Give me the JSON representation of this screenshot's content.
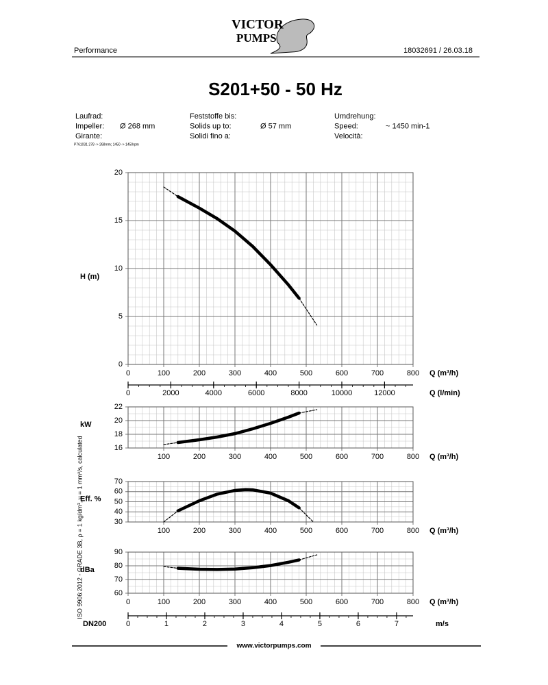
{
  "header": {
    "logo": [
      "VICTOR",
      "PUMPS"
    ],
    "left": "Performance",
    "right": "18032691 /  26.03.18"
  },
  "title": "S201+50 - 50 Hz",
  "specs": [
    {
      "labels": [
        "Laufrad:",
        "Impeller:",
        "Girante:"
      ],
      "value": "Ø 268 mm"
    },
    {
      "labels": [
        "Feststoffe bis:",
        "Solids up to:",
        "Solidi fino a:"
      ],
      "value": "Ø 57 mm"
    },
    {
      "labels": [
        "Umdrehung:",
        "Speed:",
        "Velocità:"
      ],
      "value": "~ 1450 min-1"
    }
  ],
  "note": "P761031 278 -> 268mm; 1450 -> 1450rpm",
  "side_note": "ISO 9906:2012 - GRADE 3B, ρ = 1 kg/dm³, ν = 1 mm²/s, calculated",
  "chart_data": [
    {
      "type": "line",
      "ylabel": "H (m)",
      "xlabel": "Q (m³/h)",
      "xlim": [
        0,
        800
      ],
      "xticks": [
        0,
        100,
        200,
        300,
        400,
        500,
        600,
        700,
        800
      ],
      "ylim": [
        0,
        20
      ],
      "yticks": [
        0,
        5,
        10,
        15,
        20
      ],
      "grid": true,
      "minor": [
        5,
        5
      ],
      "x": [
        100,
        140,
        200,
        250,
        300,
        350,
        400,
        450,
        480,
        530
      ],
      "series": [
        {
          "color": "#000000",
          "style": "solid",
          "values": [
            null,
            17.5,
            16.3,
            15.2,
            13.9,
            12.3,
            10.4,
            8.3,
            6.9,
            null
          ]
        },
        {
          "color": "#000000",
          "style": "dashed",
          "values": [
            18.5,
            17.5,
            null,
            null,
            null,
            null,
            null,
            null,
            6.9,
            4.1
          ]
        }
      ]
    },
    {
      "type": "axis",
      "xlabel": "Q (l/min)",
      "xlim": [
        0,
        13333
      ],
      "xticks": [
        0,
        2000,
        4000,
        6000,
        8000,
        10000,
        12000
      ]
    },
    {
      "type": "line",
      "ylabel": "kW",
      "xlabel": "Q (m³/h)",
      "xlim": [
        0,
        800
      ],
      "xticks": [
        100,
        200,
        300,
        400,
        500,
        600,
        700,
        800
      ],
      "ylim": [
        16,
        22
      ],
      "yticks": [
        16,
        18,
        20,
        22
      ],
      "grid": true,
      "minor": [
        5,
        2
      ],
      "x": [
        100,
        140,
        200,
        250,
        300,
        350,
        400,
        450,
        480,
        530
      ],
      "series": [
        {
          "color": "#000000",
          "style": "solid",
          "values": [
            null,
            16.8,
            17.2,
            17.6,
            18.1,
            18.8,
            19.6,
            20.5,
            21.1,
            null
          ]
        },
        {
          "color": "#000000",
          "style": "dashed",
          "values": [
            16.5,
            16.8,
            null,
            null,
            null,
            null,
            null,
            null,
            21.1,
            21.6
          ]
        }
      ]
    },
    {
      "type": "line",
      "ylabel": "Eff. %",
      "xlabel": "Q (m³/h)",
      "xlim": [
        0,
        800
      ],
      "xticks": [
        100,
        200,
        300,
        400,
        500,
        600,
        700,
        800
      ],
      "ylim": [
        30,
        70
      ],
      "yticks": [
        30,
        40,
        50,
        60,
        70
      ],
      "grid": true,
      "minor": [
        5,
        2
      ],
      "x": [
        100,
        140,
        200,
        250,
        300,
        330,
        350,
        400,
        450,
        480,
        520
      ],
      "series": [
        {
          "color": "#000000",
          "style": "solid",
          "values": [
            null,
            41,
            51,
            57.5,
            61.2,
            62,
            61.8,
            58.5,
            51,
            44,
            null
          ]
        },
        {
          "color": "#000000",
          "style": "dashed",
          "values": [
            30,
            41,
            null,
            null,
            null,
            null,
            null,
            null,
            null,
            44,
            30
          ]
        }
      ]
    },
    {
      "type": "line",
      "ylabel": "dBa",
      "xlabel": "Q (m³/h)",
      "xlim": [
        0,
        800
      ],
      "xticks": [
        0,
        100,
        200,
        300,
        400,
        500,
        600,
        700,
        800
      ],
      "ylim": [
        60,
        90
      ],
      "yticks": [
        60,
        70,
        80,
        90
      ],
      "grid": true,
      "minor": [
        5,
        2
      ],
      "x": [
        100,
        140,
        200,
        250,
        300,
        350,
        400,
        450,
        480,
        530
      ],
      "series": [
        {
          "color": "#000000",
          "style": "solid",
          "values": [
            null,
            78.2,
            77.5,
            77.3,
            77.6,
            78.6,
            80.2,
            82.6,
            84.3,
            null
          ]
        },
        {
          "color": "#000000",
          "style": "dashed",
          "values": [
            79.5,
            78.2,
            null,
            null,
            null,
            null,
            null,
            null,
            84.3,
            88
          ]
        }
      ]
    },
    {
      "type": "axis",
      "ylabel": "DN200",
      "xlabel": "m/s",
      "xlim": [
        0,
        7.43
      ],
      "xticks": [
        0,
        1,
        2,
        3,
        4,
        5,
        6,
        7
      ]
    }
  ],
  "footer": "www.victorpumps.com"
}
